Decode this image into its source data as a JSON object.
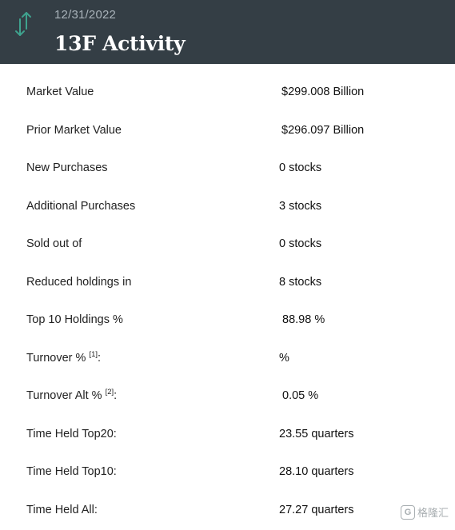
{
  "header": {
    "date": "12/31/2022",
    "title": "13F Activity",
    "icon": "up-down-arrows-icon",
    "background_color": "#343e45",
    "icon_color": "#3fa28e"
  },
  "rows": [
    {
      "label": "Market Value",
      "value": "$299.008 Billion"
    },
    {
      "label": "Prior Market Value",
      "value": "$296.097 Billion"
    },
    {
      "label": "New Purchases",
      "value": "0 stocks"
    },
    {
      "label": "Additional Purchases",
      "value": "3 stocks"
    },
    {
      "label": "Sold out of",
      "value": "0 stocks"
    },
    {
      "label": "Reduced holdings in",
      "value": "8 stocks"
    },
    {
      "label": "Top 10 Holdings %",
      "value": "88.98 %"
    },
    {
      "label": "Turnover %",
      "footnote": "[1]",
      "suffix": ":",
      "value": "%"
    },
    {
      "label": "Turnover Alt %",
      "footnote": "[2]",
      "suffix": ":",
      "value": "0.05 %"
    },
    {
      "label": "Time Held Top20:",
      "value": "23.55 quarters"
    },
    {
      "label": "Time Held Top10:",
      "value": "28.10 quarters"
    },
    {
      "label": "Time Held All:",
      "value": "27.27 quarters"
    }
  ],
  "watermark": {
    "logo_text": "G",
    "text": "格隆汇"
  }
}
